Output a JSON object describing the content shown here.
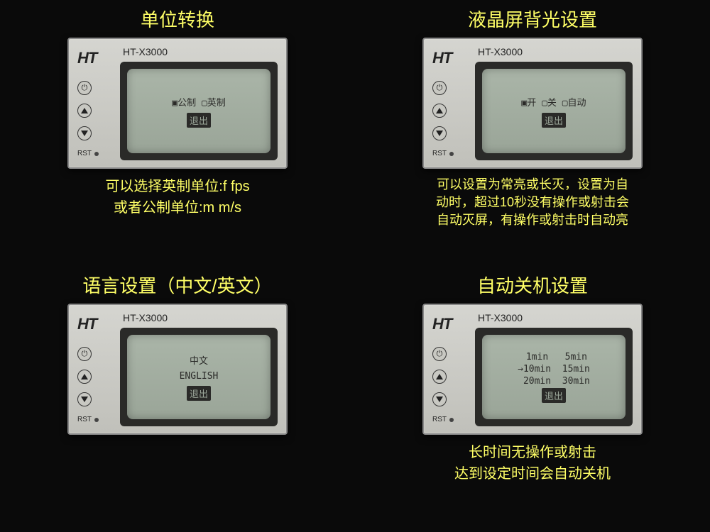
{
  "colors": {
    "background": "#0a0a0a",
    "text_highlight": "#ffff66",
    "device_body": "#c8c8c2",
    "screen_bezel": "#2a2a28",
    "screen_bg": "#9aa598",
    "screen_text": "#2a2a28"
  },
  "device": {
    "logo": "HT",
    "model": "HT-X3000",
    "rst_label": "RST"
  },
  "panels": {
    "unit": {
      "title": "单位转换",
      "screen_line1": "▣公制 ▢英制",
      "exit": "退出",
      "desc": "可以选择英制单位:f  fps\n或者公制单位:m   m/s"
    },
    "backlight": {
      "title": "液晶屏背光设置",
      "screen_line1": "▣开 ▢关 ▢自动",
      "exit": "退出",
      "desc": "可以设置为常亮或长灭，设置为自\n动时，超过10秒没有操作或射击会\n自动灭屏，有操作或射击时自动亮"
    },
    "language": {
      "title": "语言设置（中文/英文）",
      "screen_line1": "中文",
      "screen_line2": "ENGLISH",
      "exit": "退出",
      "desc": ""
    },
    "autopower": {
      "title": "自动关机设置",
      "screen_line1": " 1min   5min",
      "screen_line2": "→10min  15min",
      "screen_line3": " 20min  30min",
      "exit": "退出",
      "desc": "长时间无操作或射击\n达到设定时间会自动关机"
    }
  }
}
